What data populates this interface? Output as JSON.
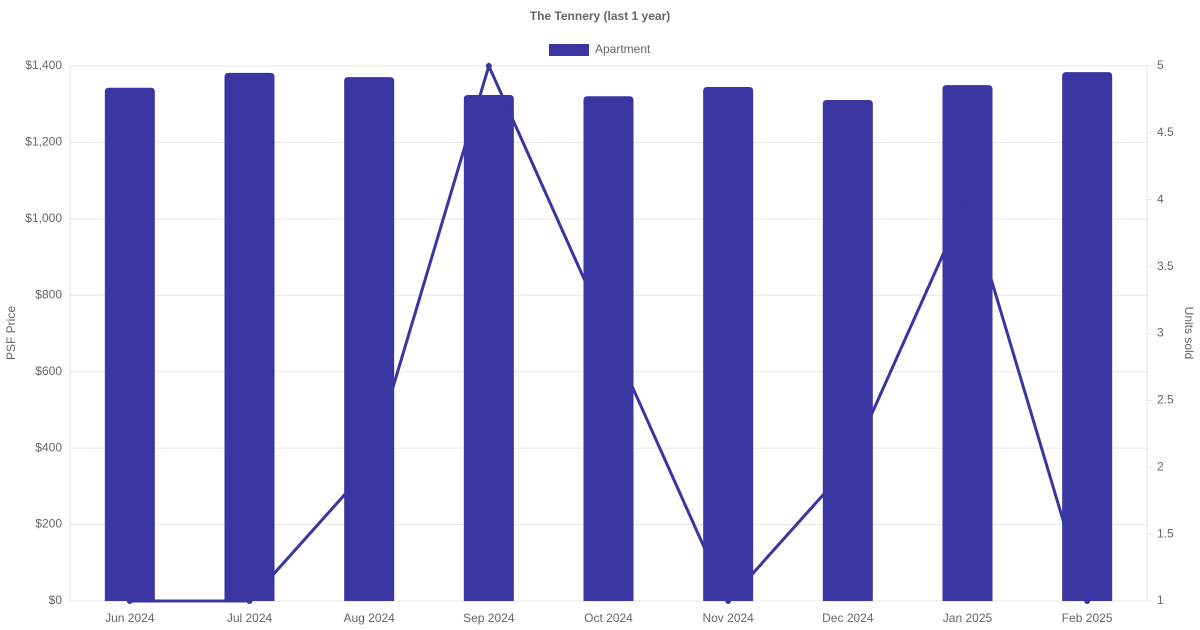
{
  "chart_data": {
    "type": "bar",
    "title": "The Tennery (last 1 year)",
    "y_label": "PSF Price",
    "y2_label": "Units sold",
    "categories": [
      "Jun 2024",
      "Jul 2024",
      "Aug 2024",
      "Sep 2024",
      "Oct 2024",
      "Nov 2024",
      "Dec 2024",
      "Jan 2025",
      "Feb 2025"
    ],
    "series": [
      {
        "name": "Apartment",
        "color": "#3a35a0",
        "values": [
          1343,
          1382,
          1371,
          1324,
          1321,
          1345,
          1311,
          1350,
          1384
        ]
      },
      {
        "type": "line",
        "axis": "y2",
        "color": "#3a35a0",
        "values": [
          1,
          1,
          2,
          5,
          3,
          1,
          2,
          4,
          1
        ]
      }
    ],
    "ylim": [
      0,
      1400
    ],
    "yticks": [
      {
        "value": 0,
        "label": "$0"
      },
      {
        "value": 200,
        "label": "$200"
      },
      {
        "value": 400,
        "label": "$400"
      },
      {
        "value": 600,
        "label": "$600"
      },
      {
        "value": 800,
        "label": "$800"
      },
      {
        "value": 1000,
        "label": "$1,000"
      },
      {
        "value": 1200,
        "label": "$1,200"
      },
      {
        "value": 1400,
        "label": "$1,400"
      }
    ],
    "y2lim": [
      1,
      5
    ],
    "y2ticks": [
      1,
      1.5,
      2,
      2.5,
      3,
      3.5,
      4,
      4.5,
      5
    ],
    "grid": true,
    "legend": "top"
  }
}
